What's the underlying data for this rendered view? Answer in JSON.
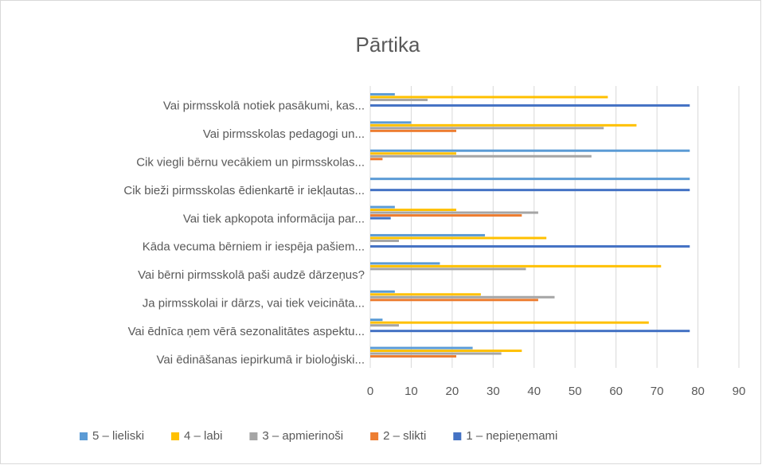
{
  "chart_data": {
    "type": "bar",
    "orientation": "horizontal",
    "title": "Pārtika",
    "categories": [
      "Vai pirmsskolā notiek pasākumi, kas...",
      "Vai pirmsskolas pedagogi un...",
      "Cik viegli bērnu vecākiem un pirmsskolas...",
      "Cik bieži pirmsskolas ēdienkartē ir iekļautas...",
      "Vai tiek apkopota informācija par...",
      "Kāda vecuma bērniem ir iespēja pašiem...",
      "Vai bērni pirmsskolā paši audzē dārzeņus?",
      "Ja pirmsskolai ir dārzs, vai tiek veicināta...",
      "Vai ēdnīca ņem vērā sezonalitātes aspektu...",
      "Vai ēdināšanas iepirkumā ir bioloģiski..."
    ],
    "series": [
      {
        "name": "5 – lieliski",
        "color": "#5b9bd5",
        "values": [
          6,
          10,
          78,
          78,
          6,
          28,
          17,
          6,
          3,
          25
        ]
      },
      {
        "name": "4 – labi",
        "color": "#ffc000",
        "values": [
          58,
          65,
          21,
          0,
          21,
          43,
          71,
          27,
          68,
          37
        ]
      },
      {
        "name": "3 – apmierinoši",
        "color": "#a5a5a5",
        "values": [
          14,
          57,
          54,
          0,
          41,
          7,
          38,
          45,
          7,
          32
        ]
      },
      {
        "name": "2 – slikti",
        "color": "#ed7d31",
        "values": [
          0,
          21,
          3,
          0,
          37,
          0,
          0,
          41,
          0,
          21
        ]
      },
      {
        "name": "1 – nepieņemami",
        "color": "#4472c4",
        "values": [
          78,
          0,
          0,
          78,
          5,
          78,
          0,
          0,
          78,
          0
        ]
      }
    ],
    "xlim": [
      0,
      90
    ],
    "xticks": [
      0,
      10,
      20,
      30,
      40,
      50,
      60,
      70,
      80,
      90
    ],
    "grid": true,
    "legend": "bottom"
  }
}
